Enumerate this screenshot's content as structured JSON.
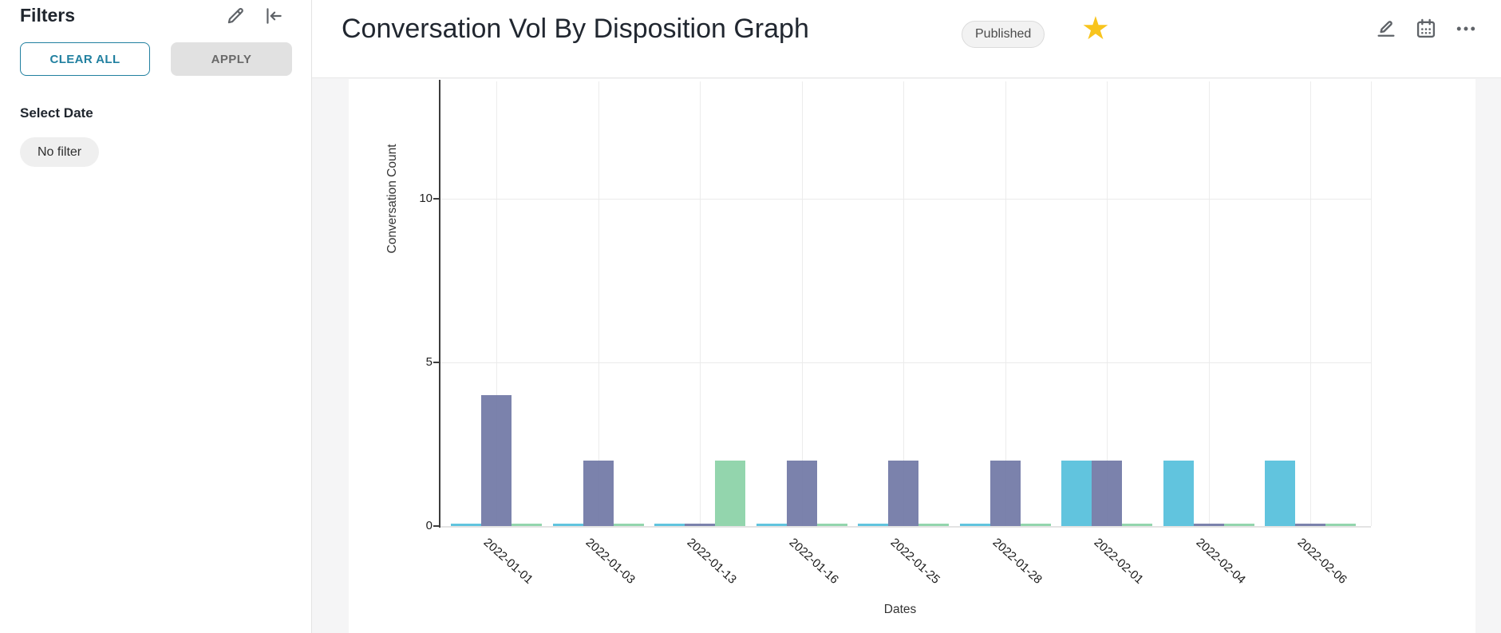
{
  "sidebar": {
    "title": "Filters",
    "clear_all_label": "CLEAR ALL",
    "apply_label": "APPLY",
    "select_date_label": "Select Date",
    "no_filter_label": "No filter",
    "edit_icon": "pencil-icon",
    "collapse_icon": "collapse-left-icon"
  },
  "header": {
    "title": "Conversation Vol By Disposition Graph",
    "status_badge": "Published",
    "favorite_icon": "star-icon",
    "favorite_active": true,
    "action_icons": [
      "edit-icon",
      "calendar-icon",
      "more-options-icon"
    ]
  },
  "colors": {
    "accent_teal": "#2180A0",
    "star_yellow": "#F8C41D",
    "badge_bg": "#F2F2F2",
    "main_bg": "#F5F5F6",
    "icon_gray": "#5F6368"
  },
  "chart_data": {
    "type": "bar",
    "title": "",
    "xlabel": "Dates",
    "ylabel": "Conversation Count",
    "ylim": [
      0,
      13.5
    ],
    "yticks": [
      0,
      5,
      10
    ],
    "grid": true,
    "legend_position": "none",
    "categories": [
      "2022-01-01",
      "2022-01-03",
      "2022-01-13",
      "2022-01-16",
      "2022-01-25",
      "2022-01-28",
      "2022-02-01",
      "2022-02-04",
      "2022-02-06"
    ],
    "series": [
      {
        "name": "series-1",
        "color": "#55BFDB",
        "values": [
          0,
          0,
          0,
          0,
          0,
          0,
          2,
          2,
          2
        ]
      },
      {
        "name": "series-2",
        "color": "#7179A6",
        "values": [
          4,
          2,
          0,
          2,
          2,
          2,
          2,
          0,
          0
        ]
      },
      {
        "name": "series-3",
        "color": "#8BD2A7",
        "values": [
          0,
          0,
          2,
          0,
          0,
          0,
          0,
          0,
          0
        ]
      }
    ]
  }
}
